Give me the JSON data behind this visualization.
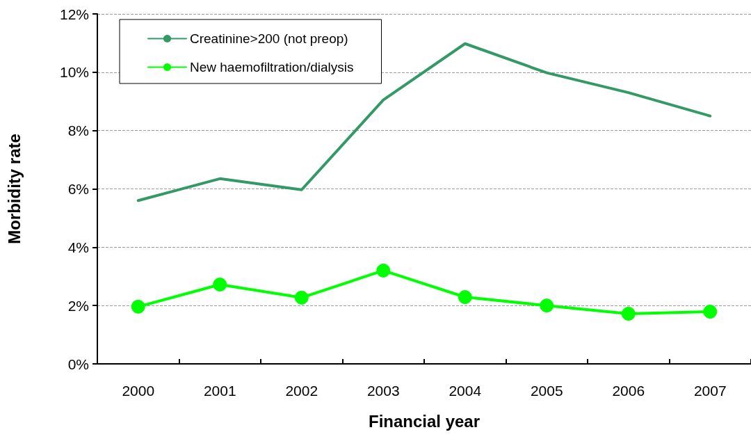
{
  "chart_data": {
    "type": "line",
    "xlabel": "Financial year",
    "ylabel": "Morbidity rate",
    "categories": [
      "2000",
      "2001",
      "2002",
      "2003",
      "2004",
      "2005",
      "2006",
      "2007"
    ],
    "series": [
      {
        "name": "Creatinine>200 (not preop)",
        "color": "#339966",
        "marker": "none",
        "values": [
          5.6,
          6.35,
          5.97,
          9.05,
          10.98,
          9.98,
          9.3,
          8.5
        ]
      },
      {
        "name": "New haemofiltration/dialysis",
        "color": "#00ff00",
        "marker": "circle",
        "values": [
          1.96,
          2.72,
          2.27,
          3.2,
          2.29,
          2.0,
          1.72,
          1.79
        ]
      }
    ],
    "ylim": [
      0,
      12
    ],
    "yticks": [
      {
        "value": 0,
        "label": "0%"
      },
      {
        "value": 2,
        "label": "2%"
      },
      {
        "value": 4,
        "label": "4%"
      },
      {
        "value": 6,
        "label": "6%"
      },
      {
        "value": 8,
        "label": "8%"
      },
      {
        "value": 10,
        "label": "10%"
      },
      {
        "value": 12,
        "label": "12%"
      }
    ],
    "grid": "y",
    "legend": "top left",
    "line_style": "solid"
  }
}
